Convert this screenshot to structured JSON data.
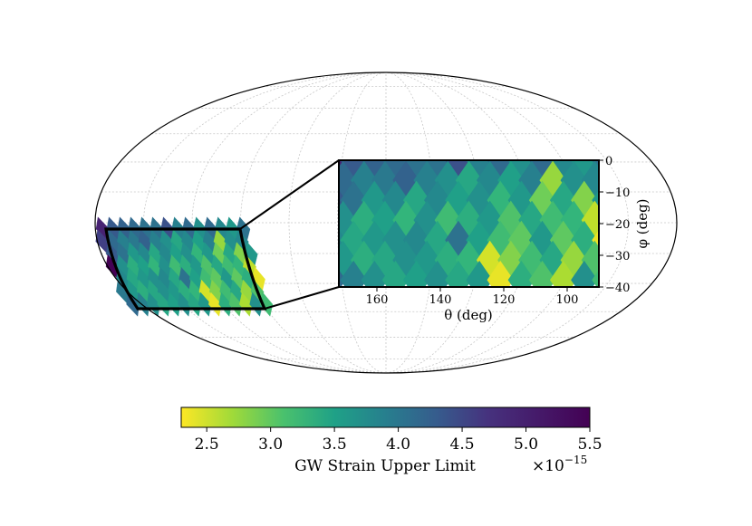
{
  "chart_data": [
    {
      "type": "heatmap",
      "projection": "mollweide",
      "title": "",
      "region": {
        "theta_range": [
          90,
          172
        ],
        "phi_range": [
          -40,
          0
        ]
      },
      "grid": true,
      "outline_color": "#000000"
    },
    {
      "type": "heatmap",
      "role": "inset",
      "xlabel": "θ (deg)",
      "ylabel": "φ (deg)",
      "xlim": [
        172,
        90
      ],
      "ylim": [
        -40,
        0
      ],
      "xticks": [
        160,
        140,
        120,
        100
      ],
      "yticks": [
        0,
        -10,
        -20,
        -30,
        -40
      ],
      "colormap": "viridis_r",
      "values_scale": 1e-15,
      "cells": [
        [
          [
            0,
            0,
            5.2
          ],
          [
            -1,
            0,
            4.6
          ],
          [
            -2,
            0,
            4.5
          ],
          [
            -3,
            0,
            4.4
          ],
          [
            -4,
            0,
            4.3
          ],
          [
            -5,
            0,
            4.3
          ],
          [
            -6,
            0,
            4.7
          ],
          [
            -7,
            0,
            4.1
          ],
          [
            -8,
            0,
            4.4
          ],
          [
            -9,
            0,
            3.9
          ],
          [
            -10,
            0,
            4.4
          ],
          [
            -11,
            0,
            4.0
          ],
          [
            -12,
            0,
            3.8
          ],
          [
            -13,
            0,
            4.3
          ]
        ],
        [
          [
            0,
            -1,
            4.9
          ],
          [
            -1,
            -1,
            4.4
          ],
          [
            -2,
            -1,
            4.1
          ],
          [
            -3,
            -1,
            4.2
          ],
          [
            -4,
            -1,
            4.5
          ],
          [
            -5,
            -1,
            4.1
          ],
          [
            -6,
            -1,
            3.9
          ],
          [
            -7,
            -1,
            3.6
          ],
          [
            -8,
            -1,
            4.0
          ],
          [
            -9,
            -1,
            3.7
          ],
          [
            -10,
            -1,
            4.1
          ],
          [
            -11,
            -1,
            2.8
          ],
          [
            -12,
            -1,
            3.9
          ],
          [
            -13,
            -1,
            4.0
          ]
        ],
        [
          [
            0,
            -2,
            4.6
          ],
          [
            -1,
            -2,
            4.3
          ],
          [
            -2,
            -2,
            3.8
          ],
          [
            -3,
            -2,
            4.0
          ],
          [
            -4,
            -2,
            3.6
          ],
          [
            -5,
            -2,
            4.0
          ],
          [
            -6,
            -2,
            3.7
          ],
          [
            -7,
            -2,
            3.9
          ],
          [
            -8,
            -2,
            3.4
          ],
          [
            -9,
            -2,
            3.8
          ],
          [
            -10,
            -2,
            3.0
          ],
          [
            -11,
            -2,
            3.6
          ],
          [
            -12,
            -2,
            2.9
          ],
          [
            -13,
            -2,
            3.8
          ]
        ],
        [
          [
            0,
            -3,
            5.5
          ],
          [
            -1,
            -3,
            3.9
          ],
          [
            -2,
            -3,
            3.5
          ],
          [
            -3,
            -3,
            3.7
          ],
          [
            -4,
            -3,
            3.4
          ],
          [
            -5,
            -3,
            3.9
          ],
          [
            -6,
            -3,
            3.3
          ],
          [
            -7,
            -3,
            3.5
          ],
          [
            -8,
            -3,
            3.8
          ],
          [
            -9,
            -3,
            3.2
          ],
          [
            -10,
            -3,
            3.6
          ],
          [
            -11,
            -3,
            3.3
          ],
          [
            -12,
            -3,
            3.4
          ],
          [
            -13,
            -3,
            2.6
          ]
        ],
        [
          [
            0,
            -4,
            4.0
          ],
          [
            -1,
            -4,
            3.6
          ],
          [
            -2,
            -4,
            3.8
          ],
          [
            -3,
            -4,
            3.9
          ],
          [
            -4,
            -4,
            4.0
          ],
          [
            -5,
            -4,
            3.6
          ],
          [
            -6,
            -4,
            4.3
          ],
          [
            -7,
            -4,
            3.7
          ],
          [
            -8,
            -4,
            3.3
          ],
          [
            -9,
            -4,
            3.1
          ],
          [
            -10,
            -4,
            3.8
          ],
          [
            -11,
            -4,
            3.1
          ],
          [
            -12,
            -4,
            3.5
          ],
          [
            -13,
            -4,
            2.4
          ]
        ],
        [
          [
            0,
            -5,
            4.2
          ],
          [
            -1,
            -5,
            3.8
          ],
          [
            -2,
            -5,
            3.5
          ],
          [
            -3,
            -5,
            3.6
          ],
          [
            -4,
            -5,
            3.9
          ],
          [
            -5,
            -5,
            3.8
          ],
          [
            -6,
            -5,
            3.5
          ],
          [
            -7,
            -5,
            3.4
          ],
          [
            -8,
            -5,
            2.5
          ],
          [
            -9,
            -5,
            2.9
          ],
          [
            -10,
            -5,
            3.3
          ],
          [
            -11,
            -5,
            3.6
          ],
          [
            -12,
            -5,
            2.8
          ],
          [
            -13,
            -5,
            3.2
          ]
        ],
        [
          [
            0,
            -6,
            4.4
          ],
          [
            -1,
            -6,
            4.1
          ],
          [
            -2,
            -6,
            3.9
          ],
          [
            -3,
            -6,
            3.6
          ],
          [
            -4,
            -6,
            3.7
          ],
          [
            -5,
            -6,
            3.9
          ],
          [
            -6,
            -6,
            3.6
          ],
          [
            -7,
            -6,
            3.8
          ],
          [
            -8,
            -6,
            2.4
          ],
          [
            -9,
            -6,
            3.5
          ],
          [
            -10,
            -6,
            3.2
          ],
          [
            -11,
            -6,
            2.7
          ],
          [
            -12,
            -6,
            3.9
          ],
          [
            -13,
            -6,
            3.3
          ]
        ]
      ]
    },
    {
      "type": "colorbar",
      "colormap": "viridis_r",
      "xlabel": "GW Strain Upper Limit",
      "exponent_label": "×10",
      "exponent": "−15",
      "xlim": [
        2.3,
        5.5
      ],
      "ticks": [
        "2.5",
        "3.0",
        "3.5",
        "4.0",
        "4.5",
        "5.0",
        "5.5"
      ]
    }
  ]
}
